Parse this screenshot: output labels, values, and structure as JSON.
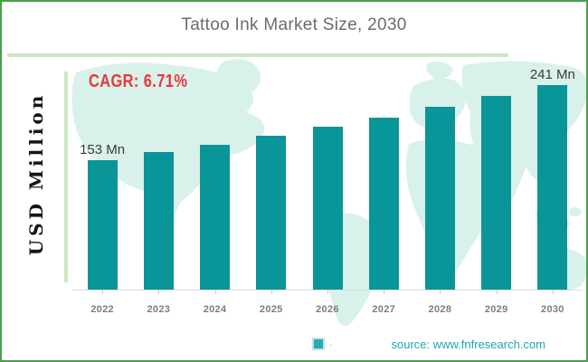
{
  "title": "Tattoo Ink Market Size, 2030",
  "cagr_label": "CAGR: 6.71%",
  "ylabel": "USD Million",
  "source": {
    "text": "source: www.fnfresearch.com"
  },
  "legend": {
    "label": ".",
    "marker": "teal-square"
  },
  "colors": {
    "bar": "#0A9599",
    "map_background": "#D9F1EB",
    "frame_green": "#46A04B",
    "axis_light_green": "#CBE8C3",
    "cagr_red": "#E8383C",
    "title_gray": "#6B6C6E",
    "year_label_gray": "#7B7D80",
    "source_teal": "#1CA6AB"
  },
  "chart_data": {
    "type": "bar",
    "title": "Tattoo Ink Market Size, 2030",
    "xlabel": "",
    "ylabel": "USD Million",
    "categories": [
      "2022",
      "2023",
      "2024",
      "2025",
      "2026",
      "2027",
      "2028",
      "2029",
      "2030"
    ],
    "values": [
      153,
      162,
      171,
      181,
      192,
      203,
      215,
      228,
      241
    ],
    "unit": "Mn",
    "labeled_points": [
      "2022",
      "2030"
    ],
    "value_labels_shown": [
      "153 Mn",
      "241 Mn"
    ],
    "cagr": "6.71%",
    "ylim": [
      0,
      260
    ],
    "grid": false,
    "legend_position": "bottom",
    "bar_color": "#0A9599",
    "background": "world-map"
  }
}
